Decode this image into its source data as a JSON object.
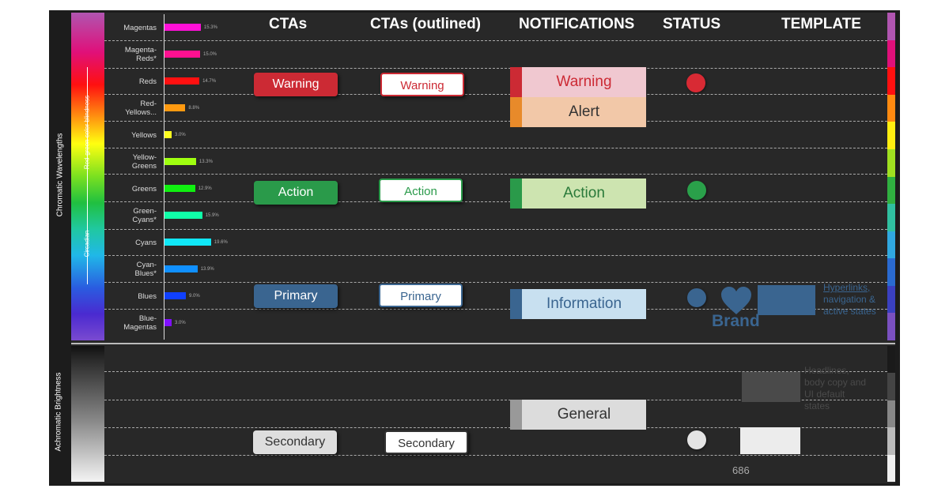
{
  "side_labels": {
    "chromatic": "Chromatic Wavelengths",
    "achromatic": "Achromatic Brightness",
    "redgreen": "Red-green color blindness",
    "circadian": "Circadian"
  },
  "column_headers": {
    "ctas": "CTAs",
    "ctas_outlined": "CTAs (outlined)",
    "notifications": "NOTIFICATIONS",
    "status": "STATUS",
    "template": "TEMPLATE"
  },
  "chart_data": {
    "type": "bar",
    "orientation": "horizontal",
    "categories": [
      "Magentas",
      "Magenta-Reds*",
      "Reds",
      "Red-Yellows...",
      "Yellows",
      "Yellow-Greens",
      "Greens",
      "Green-Cyans*",
      "Cyans",
      "Cyan-Blues*",
      "Blues",
      "Blue-Magentas"
    ],
    "category_lines": [
      [
        "Magentas"
      ],
      [
        "Magenta-",
        "Reds*"
      ],
      [
        "Reds"
      ],
      [
        "Red-",
        "Yellows..."
      ],
      [
        "Yellows"
      ],
      [
        "Yellow-",
        "Greens"
      ],
      [
        "Greens"
      ],
      [
        "Green-",
        "Cyans*"
      ],
      [
        "Cyans"
      ],
      [
        "Cyan-",
        "Blues*"
      ],
      [
        "Blues"
      ],
      [
        "Blue-",
        "Magentas"
      ]
    ],
    "values": [
      15.3,
      15.0,
      14.7,
      8.8,
      3.0,
      13.3,
      12.9,
      15.9,
      19.6,
      13.9,
      9.0,
      3.0
    ],
    "labels": [
      "15.3%",
      "15.0%",
      "14.7%",
      "8.8%",
      "3.0%",
      "13.3%",
      "12.9%",
      "15.9%",
      "19.6%",
      "13.9%",
      "9.0%",
      "3.0%"
    ],
    "colors": [
      "#ff10d8",
      "#ff1090",
      "#ff1010",
      "#ff9a10",
      "#ffff20",
      "#a0ff10",
      "#10f010",
      "#10ffa8",
      "#10e8f8",
      "#1090ff",
      "#1040ff",
      "#8010ff"
    ],
    "xlim": [
      0,
      20
    ]
  },
  "ctas": {
    "warning": {
      "label": "Warning",
      "color": "#cc2a34"
    },
    "action": {
      "label": "Action",
      "color": "#2a9a4a"
    },
    "primary": {
      "label": "Primary",
      "color": "#3a6590"
    },
    "secondary": {
      "label": "Secondary",
      "color": "#dedede"
    }
  },
  "ctas_outlined": {
    "warning": {
      "label": "Warning",
      "color": "#cc2a34"
    },
    "action": {
      "label": "Action",
      "color": "#2a9a4a"
    },
    "primary": {
      "label": "Primary",
      "color": "#3a6590"
    },
    "secondary": {
      "label": "Secondary",
      "color": "#333333"
    }
  },
  "notifications": {
    "warning": {
      "label": "Warning",
      "stripe": "#cc2a34",
      "bg": "#f0c8d0",
      "text": "#cc2a34"
    },
    "alert": {
      "label": "Alert",
      "stripe": "#e88a2a",
      "bg": "#f2c8a8",
      "text": "#333333"
    },
    "action": {
      "label": "Action",
      "stripe": "#2a9a4a",
      "bg": "#cde4b0",
      "text": "#2a7a3a"
    },
    "information": {
      "label": "Information",
      "stripe": "#3a6590",
      "bg": "#c8e0f0",
      "text": "#3a6590"
    },
    "general": {
      "label": "General",
      "stripe": "#999999",
      "bg": "#dcdcdc",
      "text": "#333333"
    }
  },
  "status": {
    "red": "#d82a34",
    "green": "#2aa04a",
    "blue": "#3a6590",
    "gray": "#e4e4e4"
  },
  "template": {
    "brand_label": "Brand",
    "brand_color": "#3a6590",
    "hyperlinks_text": "Hyperlinks, navigation & active states",
    "hyperlinks_lines": [
      "Hyperlinks,",
      "navigation &",
      "active states"
    ],
    "headlines_text": "Headlines, body copy and UI default states",
    "headlines_lines": [
      "Headlines,",
      "body copy and",
      "UI default",
      "states"
    ],
    "headlines_color": "#4a4a4a",
    "light_swatch_color": "#ececec",
    "number": "686"
  },
  "right_band_colors": [
    "#b055b0",
    "#e0107a",
    "#ff1010",
    "#ff8a10",
    "#ffee10",
    "#a0e020",
    "#30b040",
    "#30c0a0",
    "#30a8e0",
    "#2a6ad0",
    "#3a40c0",
    "#7a50c0"
  ],
  "gray_band_colors": [
    "#1a1a1a",
    "#444444",
    "#888888",
    "#bbbbbb",
    "#f0f0f0"
  ]
}
